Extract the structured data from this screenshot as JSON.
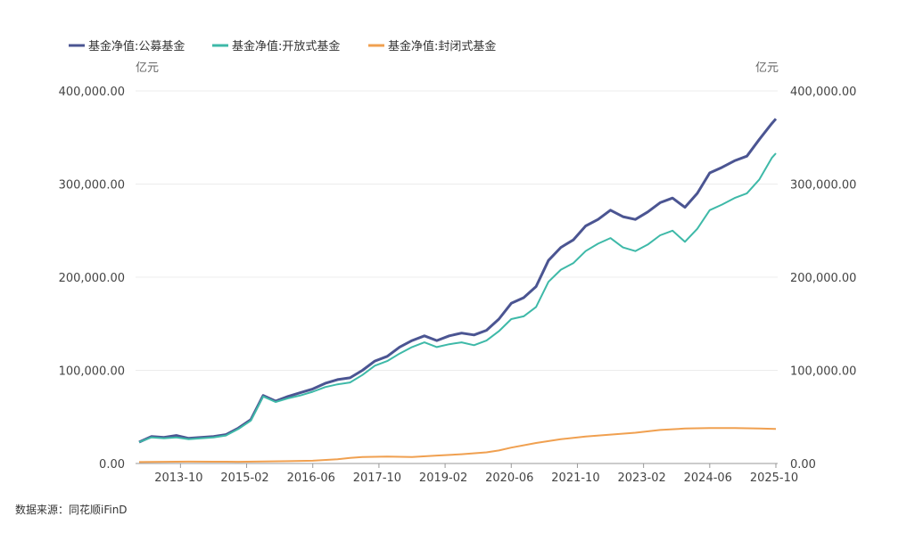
{
  "chart_data": {
    "type": "line",
    "legend": {
      "position": "top-left"
    },
    "units": {
      "left": "亿元",
      "right": "亿元"
    },
    "y_left": {
      "ticks": [
        "400,000.00",
        "300,000.00",
        "200,000.00",
        "100,000.00",
        "0.00"
      ],
      "ylim": [
        0,
        400000
      ]
    },
    "y_right": {
      "ticks": [
        "400,000.00",
        "300,000.00",
        "200,000.00",
        "100,000.00",
        "0.00"
      ],
      "ylim": [
        0,
        400000
      ]
    },
    "x_ticks": [
      "2013-10",
      "2015-02",
      "2016-06",
      "2017-10",
      "2019-02",
      "2020-06",
      "2021-10",
      "2023-02",
      "2024-06",
      "2025-10"
    ],
    "x_range": [
      "2012-12",
      "2025-10"
    ],
    "grid": true,
    "series": [
      {
        "name": "基金净值:公募基金",
        "color": "#4b5592",
        "points": [
          [
            "2012-12",
            23000
          ],
          [
            "2013-03",
            29000
          ],
          [
            "2013-06",
            28000
          ],
          [
            "2013-09",
            30000
          ],
          [
            "2013-12",
            27000
          ],
          [
            "2014-03",
            28000
          ],
          [
            "2014-06",
            29000
          ],
          [
            "2014-09",
            31000
          ],
          [
            "2014-12",
            38000
          ],
          [
            "2015-03",
            47000
          ],
          [
            "2015-06",
            73000
          ],
          [
            "2015-09",
            67000
          ],
          [
            "2015-12",
            72000
          ],
          [
            "2016-03",
            76000
          ],
          [
            "2016-06",
            80000
          ],
          [
            "2016-09",
            86000
          ],
          [
            "2016-12",
            90000
          ],
          [
            "2017-03",
            92000
          ],
          [
            "2017-06",
            100000
          ],
          [
            "2017-09",
            110000
          ],
          [
            "2017-12",
            115000
          ],
          [
            "2018-03",
            125000
          ],
          [
            "2018-06",
            132000
          ],
          [
            "2018-09",
            137000
          ],
          [
            "2018-12",
            132000
          ],
          [
            "2019-03",
            137000
          ],
          [
            "2019-06",
            140000
          ],
          [
            "2019-09",
            138000
          ],
          [
            "2019-12",
            143000
          ],
          [
            "2020-03",
            155000
          ],
          [
            "2020-06",
            172000
          ],
          [
            "2020-09",
            178000
          ],
          [
            "2020-12",
            190000
          ],
          [
            "2021-03",
            218000
          ],
          [
            "2021-06",
            232000
          ],
          [
            "2021-09",
            240000
          ],
          [
            "2021-12",
            255000
          ],
          [
            "2022-03",
            262000
          ],
          [
            "2022-06",
            272000
          ],
          [
            "2022-09",
            265000
          ],
          [
            "2022-12",
            262000
          ],
          [
            "2023-03",
            270000
          ],
          [
            "2023-06",
            280000
          ],
          [
            "2023-09",
            285000
          ],
          [
            "2023-12",
            275000
          ],
          [
            "2024-03",
            290000
          ],
          [
            "2024-06",
            312000
          ],
          [
            "2024-09",
            318000
          ],
          [
            "2024-12",
            325000
          ],
          [
            "2025-03",
            330000
          ],
          [
            "2025-06",
            348000
          ],
          [
            "2025-09",
            365000
          ],
          [
            "2025-10",
            370000
          ]
        ]
      },
      {
        "name": "基金净值:开放式基金",
        "color": "#3eb9a8",
        "points": [
          [
            "2012-12",
            23000
          ],
          [
            "2013-03",
            28000
          ],
          [
            "2013-06",
            27000
          ],
          [
            "2013-09",
            28000
          ],
          [
            "2013-12",
            26000
          ],
          [
            "2014-03",
            27000
          ],
          [
            "2014-06",
            28000
          ],
          [
            "2014-09",
            30000
          ],
          [
            "2014-12",
            37000
          ],
          [
            "2015-03",
            46000
          ],
          [
            "2015-06",
            72000
          ],
          [
            "2015-09",
            66000
          ],
          [
            "2015-12",
            70000
          ],
          [
            "2016-03",
            73000
          ],
          [
            "2016-06",
            77000
          ],
          [
            "2016-09",
            82000
          ],
          [
            "2016-12",
            85000
          ],
          [
            "2017-03",
            87000
          ],
          [
            "2017-06",
            95000
          ],
          [
            "2017-09",
            105000
          ],
          [
            "2017-12",
            110000
          ],
          [
            "2018-03",
            118000
          ],
          [
            "2018-06",
            125000
          ],
          [
            "2018-09",
            130000
          ],
          [
            "2018-12",
            125000
          ],
          [
            "2019-03",
            128000
          ],
          [
            "2019-06",
            130000
          ],
          [
            "2019-09",
            127000
          ],
          [
            "2019-12",
            132000
          ],
          [
            "2020-03",
            142000
          ],
          [
            "2020-06",
            155000
          ],
          [
            "2020-09",
            158000
          ],
          [
            "2020-12",
            168000
          ],
          [
            "2021-03",
            195000
          ],
          [
            "2021-06",
            208000
          ],
          [
            "2021-09",
            215000
          ],
          [
            "2021-12",
            228000
          ],
          [
            "2022-03",
            236000
          ],
          [
            "2022-06",
            242000
          ],
          [
            "2022-09",
            232000
          ],
          [
            "2022-12",
            228000
          ],
          [
            "2023-03",
            235000
          ],
          [
            "2023-06",
            245000
          ],
          [
            "2023-09",
            250000
          ],
          [
            "2023-12",
            238000
          ],
          [
            "2024-03",
            252000
          ],
          [
            "2024-06",
            272000
          ],
          [
            "2024-09",
            278000
          ],
          [
            "2024-12",
            285000
          ],
          [
            "2025-03",
            290000
          ],
          [
            "2025-06",
            305000
          ],
          [
            "2025-09",
            328000
          ],
          [
            "2025-10",
            333000
          ]
        ]
      },
      {
        "name": "基金净值:封闭式基金",
        "color": "#f0a050",
        "points": [
          [
            "2012-12",
            1500
          ],
          [
            "2013-06",
            1800
          ],
          [
            "2013-12",
            2000
          ],
          [
            "2014-06",
            1900
          ],
          [
            "2014-12",
            1800
          ],
          [
            "2015-06",
            2200
          ],
          [
            "2015-12",
            2500
          ],
          [
            "2016-06",
            3000
          ],
          [
            "2016-12",
            4500
          ],
          [
            "2017-03",
            6000
          ],
          [
            "2017-06",
            7000
          ],
          [
            "2017-12",
            7500
          ],
          [
            "2018-06",
            7000
          ],
          [
            "2018-12",
            8500
          ],
          [
            "2019-06",
            10000
          ],
          [
            "2019-12",
            12000
          ],
          [
            "2020-03",
            14000
          ],
          [
            "2020-06",
            17000
          ],
          [
            "2020-12",
            22000
          ],
          [
            "2021-06",
            26000
          ],
          [
            "2021-12",
            29000
          ],
          [
            "2022-06",
            31000
          ],
          [
            "2022-12",
            33000
          ],
          [
            "2023-06",
            36000
          ],
          [
            "2023-12",
            37500
          ],
          [
            "2024-06",
            38000
          ],
          [
            "2024-12",
            38000
          ],
          [
            "2025-06",
            37500
          ],
          [
            "2025-10",
            37000
          ]
        ]
      }
    ]
  },
  "source_text": "数据来源：同花顺iFinD"
}
